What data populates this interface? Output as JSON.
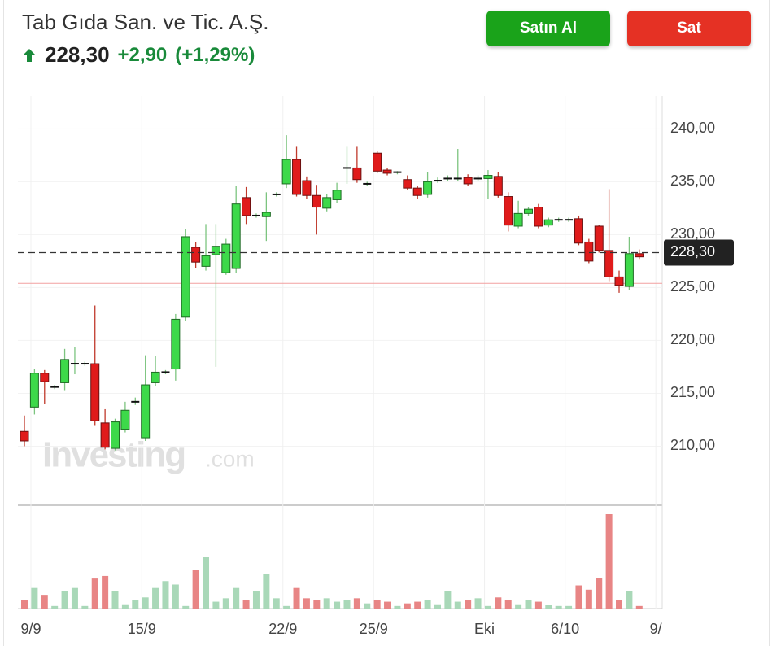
{
  "header": {
    "title": "Tab Gıda San. ve Tic. A.Ş.",
    "price": "228,30",
    "change": "+2,90",
    "change_pct": "(+1,29%)"
  },
  "buttons": {
    "buy": "Satın Al",
    "sell": "Sat"
  },
  "chart_data": {
    "type": "candlestick",
    "categories": [
      "9/9",
      null,
      null,
      null,
      null,
      null,
      null,
      null,
      null,
      null,
      null,
      "15/9",
      null,
      null,
      null,
      null,
      null,
      null,
      null,
      null,
      null,
      null,
      null,
      null,
      null,
      "22/9",
      null,
      null,
      null,
      null,
      null,
      null,
      null,
      null,
      "25/9",
      null,
      null,
      null,
      null,
      null,
      null,
      null,
      null,
      null,
      null,
      "Eki",
      null,
      null,
      null,
      null,
      null,
      null,
      null,
      "6/10",
      null,
      null,
      null,
      null,
      null,
      null,
      null,
      null,
      "9/"
    ],
    "open": [
      211.4,
      213.7,
      216.9,
      215.6,
      216.0,
      217.8,
      217.8,
      217.8,
      212.2,
      209.8,
      211.6,
      214.2,
      210.8,
      216.0,
      217.0,
      217.3,
      222.2,
      228.8,
      227.0,
      228.1,
      226.4,
      226.8,
      233.5,
      231.8,
      231.7,
      233.8,
      234.8,
      237.1,
      235.1,
      233.7,
      232.5,
      233.3,
      236.3,
      236.3,
      234.8,
      237.7,
      236.1,
      235.9,
      235.2,
      234.4,
      233.8,
      235.0,
      235.3,
      235.3,
      235.4,
      235.3,
      235.3,
      235.5,
      233.6,
      230.8,
      232.0,
      232.6,
      230.9,
      231.4,
      231.4,
      231.5,
      229.3,
      230.8,
      228.5,
      226.0,
      225.1,
      228.2,
      null
    ],
    "high": [
      212.9,
      217.3,
      217.2,
      215.8,
      219.2,
      219.4,
      218.0,
      223.3,
      213.5,
      212.6,
      214.2,
      214.6,
      218.6,
      218.5,
      217.2,
      222.5,
      230.5,
      229.3,
      231.0,
      231.0,
      229.6,
      234.6,
      234.5,
      232.0,
      234.0,
      234.0,
      239.4,
      238.3,
      235.5,
      234.7,
      233.8,
      234.9,
      238.3,
      238.3,
      235.0,
      237.9,
      236.3,
      236.0,
      235.6,
      234.6,
      235.9,
      235.4,
      235.6,
      238.1,
      235.7,
      235.6,
      236.1,
      235.9,
      234.0,
      233.2,
      232.6,
      232.9,
      231.6,
      231.6,
      231.6,
      231.8,
      229.6,
      230.9,
      234.3,
      226.6,
      229.8,
      228.6,
      null
    ],
    "low": [
      210.0,
      213.0,
      214.0,
      215.4,
      215.3,
      216.8,
      217.6,
      212.0,
      209.7,
      209.6,
      211.3,
      213.9,
      210.5,
      215.7,
      216.8,
      216.2,
      221.8,
      226.8,
      226.6,
      217.5,
      226.2,
      226.4,
      231.0,
      231.6,
      229.4,
      233.6,
      234.4,
      233.6,
      233.4,
      230.0,
      232.2,
      233.0,
      234.8,
      234.9,
      234.6,
      235.8,
      235.6,
      235.7,
      234.2,
      233.4,
      233.5,
      234.9,
      235.1,
      235.1,
      234.6,
      235.1,
      233.4,
      233.5,
      230.3,
      230.6,
      231.8,
      230.6,
      230.7,
      231.2,
      231.2,
      229.0,
      227.3,
      228.3,
      225.6,
      224.5,
      224.8,
      227.7,
      null
    ],
    "close": [
      210.5,
      216.9,
      216.1,
      215.6,
      218.2,
      217.8,
      217.8,
      212.4,
      209.9,
      212.3,
      213.4,
      214.2,
      215.8,
      217.0,
      217.0,
      222.0,
      229.8,
      227.4,
      228.0,
      228.9,
      229.1,
      232.9,
      231.8,
      231.8,
      232.1,
      233.8,
      237.1,
      233.8,
      233.7,
      232.6,
      233.5,
      234.2,
      236.3,
      235.2,
      234.8,
      236.0,
      235.8,
      235.9,
      234.4,
      233.7,
      235.0,
      235.1,
      235.3,
      235.3,
      234.8,
      235.3,
      235.6,
      233.7,
      230.9,
      232.0,
      232.4,
      230.8,
      231.4,
      231.4,
      231.4,
      229.2,
      227.5,
      228.5,
      226.0,
      225.2,
      228.2,
      227.9,
      null
    ],
    "volume": [
      10,
      24,
      16,
      3,
      20,
      24,
      3,
      35,
      38,
      20,
      5,
      10,
      13,
      24,
      32,
      28,
      3,
      45,
      60,
      8,
      12,
      24,
      10,
      20,
      40,
      12,
      3,
      24,
      12,
      10,
      12,
      8,
      10,
      12,
      6,
      10,
      8,
      3,
      6,
      8,
      10,
      5,
      20,
      8,
      10,
      12,
      3,
      13,
      10,
      5,
      10,
      8,
      4,
      3,
      3,
      27,
      22,
      36,
      110,
      10,
      20,
      3,
      null
    ],
    "ylim": [
      204.5,
      243.1
    ],
    "yticks": [
      {
        "value": 210,
        "label": "210,00"
      },
      {
        "value": 215,
        "label": "215,00"
      },
      {
        "value": 220,
        "label": "220,00"
      },
      {
        "value": 225,
        "label": "225,00"
      },
      {
        "value": 230,
        "label": "230,00"
      },
      {
        "value": 235,
        "label": "235,00"
      },
      {
        "value": 240,
        "label": "240,00"
      }
    ],
    "last_price": {
      "value": 228.3,
      "label": "228,30"
    },
    "reference_line": 225.4,
    "up_color": "#3dd94a",
    "down_color": "#e01b1b",
    "up_volume_color": "#a9d8b8",
    "down_volume_color": "#e88585",
    "watermark": "Investing",
    "watermark_suffix": ".com",
    "grid": true
  }
}
